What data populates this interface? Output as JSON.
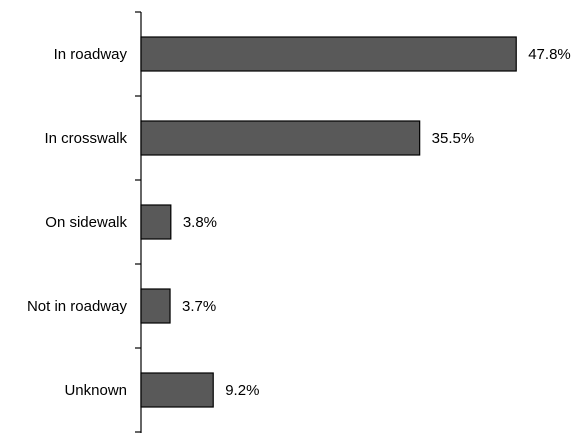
{
  "chart_data": {
    "type": "bar",
    "orientation": "horizontal",
    "title": "",
    "xlabel": "",
    "ylabel": "",
    "categories": [
      "In roadway",
      "In crosswalk",
      "On sidewalk",
      "Not in roadway",
      "Unknown"
    ],
    "values": [
      47.8,
      35.5,
      3.8,
      3.7,
      9.2
    ],
    "data_labels": [
      "47.8%",
      "35.5%",
      "3.8%",
      "3.7%",
      "9.2%"
    ],
    "xlim": [
      0,
      50
    ],
    "grid": false,
    "legend": "none",
    "bar_color": "#595959",
    "bar_edge_color": "#000000"
  }
}
